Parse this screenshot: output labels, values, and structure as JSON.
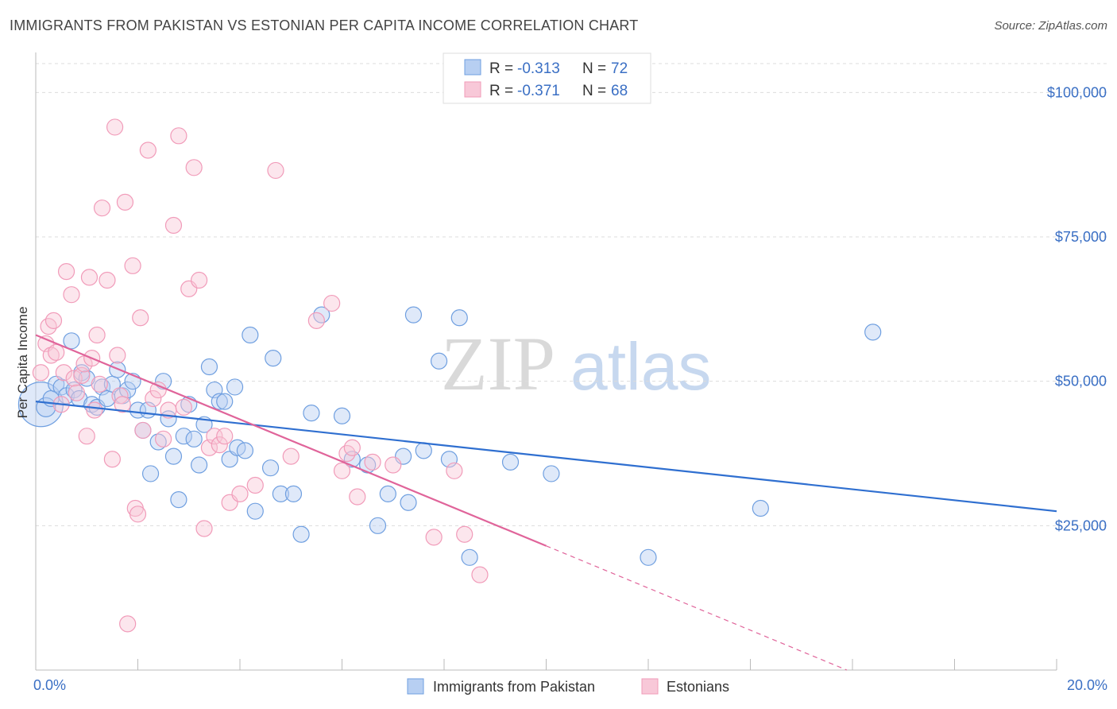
{
  "title": "IMMIGRANTS FROM PAKISTAN VS ESTONIAN PER CAPITA INCOME CORRELATION CHART",
  "source": "Source: ZipAtlas.com",
  "watermark": {
    "zip": "ZIP",
    "atlas": "atlas"
  },
  "chart_data": {
    "type": "scatter",
    "title": "IMMIGRANTS FROM PAKISTAN VS ESTONIAN PER CAPITA INCOME CORRELATION CHART",
    "xlabel": "",
    "ylabel": "Per Capita Income",
    "xlim": [
      0,
      20
    ],
    "ylim": [
      0,
      105000
    ],
    "x_tick_labels": [
      "0.0%",
      "20.0%"
    ],
    "y_ticks": [
      25000,
      50000,
      75000,
      100000
    ],
    "y_tick_labels": [
      "$25,000",
      "$50,000",
      "$75,000",
      "$100,000"
    ],
    "grid": true,
    "legend_position": "top-center",
    "legend_stats": [
      {
        "r_label": "R = ",
        "r_value": "-0.313",
        "n_label": "N = ",
        "n_value": "72"
      },
      {
        "r_label": "R = ",
        "r_value": "-0.371",
        "n_label": "N = ",
        "n_value": "68"
      }
    ],
    "series": [
      {
        "name": "Immigrants from Pakistan",
        "color": "#6f9fe0",
        "line_color": "#2f6fd0",
        "trend": {
          "x": [
            0,
            20
          ],
          "y": [
            46500,
            27500
          ],
          "solid_until": 20
        },
        "points": [
          [
            0.1,
            46000,
            28
          ],
          [
            0.2,
            45500,
            12
          ],
          [
            0.3,
            47000,
            10
          ],
          [
            0.4,
            49500,
            10
          ],
          [
            0.5,
            49000,
            10
          ],
          [
            0.6,
            47500,
            10
          ],
          [
            0.7,
            57000,
            10
          ],
          [
            0.75,
            48500,
            10
          ],
          [
            0.85,
            47000,
            10
          ],
          [
            0.9,
            51500,
            10
          ],
          [
            1.0,
            50500,
            10
          ],
          [
            1.1,
            46000,
            10
          ],
          [
            1.2,
            45500,
            10
          ],
          [
            1.3,
            49000,
            10
          ],
          [
            1.4,
            47000,
            10
          ],
          [
            1.5,
            49500,
            10
          ],
          [
            1.6,
            52000,
            10
          ],
          [
            1.7,
            47500,
            10
          ],
          [
            1.8,
            48500,
            10
          ],
          [
            1.9,
            50000,
            10
          ],
          [
            2.0,
            45000,
            10
          ],
          [
            2.1,
            41500,
            10
          ],
          [
            2.2,
            45000,
            10
          ],
          [
            2.25,
            34000,
            10
          ],
          [
            2.4,
            39500,
            10
          ],
          [
            2.5,
            50000,
            10
          ],
          [
            2.6,
            43500,
            10
          ],
          [
            2.7,
            37000,
            10
          ],
          [
            2.8,
            29500,
            10
          ],
          [
            2.9,
            40500,
            10
          ],
          [
            3.0,
            46000,
            10
          ],
          [
            3.1,
            40000,
            10
          ],
          [
            3.2,
            35500,
            10
          ],
          [
            3.3,
            42500,
            10
          ],
          [
            3.4,
            52500,
            10
          ],
          [
            3.5,
            48500,
            10
          ],
          [
            3.6,
            46500,
            10
          ],
          [
            3.7,
            46500,
            10
          ],
          [
            3.8,
            36500,
            10
          ],
          [
            3.9,
            49000,
            10
          ],
          [
            3.95,
            38500,
            10
          ],
          [
            4.1,
            38000,
            10
          ],
          [
            4.2,
            58000,
            10
          ],
          [
            4.3,
            27500,
            10
          ],
          [
            4.6,
            35000,
            10
          ],
          [
            4.65,
            54000,
            10
          ],
          [
            4.8,
            30500,
            10
          ],
          [
            5.05,
            30500,
            10
          ],
          [
            5.2,
            23500,
            10
          ],
          [
            5.4,
            44500,
            10
          ],
          [
            5.6,
            61500,
            10
          ],
          [
            6.0,
            44000,
            10
          ],
          [
            6.2,
            36500,
            10
          ],
          [
            6.5,
            35500,
            10
          ],
          [
            6.7,
            25000,
            10
          ],
          [
            6.9,
            30500,
            10
          ],
          [
            7.2,
            37000,
            10
          ],
          [
            7.3,
            29000,
            10
          ],
          [
            7.4,
            61500,
            10
          ],
          [
            7.6,
            38000,
            10
          ],
          [
            7.9,
            53500,
            10
          ],
          [
            8.1,
            36500,
            10
          ],
          [
            8.3,
            61000,
            10
          ],
          [
            8.5,
            19500,
            10
          ],
          [
            9.3,
            36000,
            10
          ],
          [
            10.1,
            34000,
            10
          ],
          [
            12.0,
            19500,
            10
          ],
          [
            14.2,
            28000,
            10
          ],
          [
            16.4,
            58500,
            10
          ]
        ]
      },
      {
        "name": "Estonians",
        "color": "#f19bb9",
        "line_color": "#e0649a",
        "trend": {
          "x": [
            0,
            20
          ],
          "y": [
            58000,
            -15000
          ],
          "solid_until": 10
        },
        "points": [
          [
            0.1,
            51500,
            10
          ],
          [
            0.2,
            56500,
            10
          ],
          [
            0.25,
            59500,
            10
          ],
          [
            0.3,
            54500,
            10
          ],
          [
            0.35,
            60500,
            10
          ],
          [
            0.4,
            55000,
            10
          ],
          [
            0.5,
            46000,
            10
          ],
          [
            0.55,
            51500,
            10
          ],
          [
            0.6,
            69000,
            10
          ],
          [
            0.7,
            65000,
            10
          ],
          [
            0.75,
            50500,
            10
          ],
          [
            0.8,
            48000,
            10
          ],
          [
            0.9,
            51000,
            10
          ],
          [
            0.95,
            53000,
            10
          ],
          [
            1.0,
            40500,
            10
          ],
          [
            1.05,
            68000,
            10
          ],
          [
            1.1,
            54000,
            10
          ],
          [
            1.15,
            45000,
            10
          ],
          [
            1.2,
            58000,
            10
          ],
          [
            1.25,
            49500,
            10
          ],
          [
            1.3,
            80000,
            10
          ],
          [
            1.4,
            67500,
            10
          ],
          [
            1.5,
            36500,
            10
          ],
          [
            1.55,
            94000,
            10
          ],
          [
            1.6,
            54500,
            10
          ],
          [
            1.65,
            47500,
            10
          ],
          [
            1.7,
            46000,
            10
          ],
          [
            1.75,
            81000,
            10
          ],
          [
            1.8,
            8000,
            10
          ],
          [
            1.9,
            70000,
            10
          ],
          [
            1.95,
            28000,
            10
          ],
          [
            2.0,
            27000,
            10
          ],
          [
            2.05,
            61000,
            10
          ],
          [
            2.1,
            41500,
            10
          ],
          [
            2.2,
            90000,
            10
          ],
          [
            2.3,
            47000,
            10
          ],
          [
            2.4,
            48500,
            10
          ],
          [
            2.5,
            40000,
            10
          ],
          [
            2.6,
            45000,
            10
          ],
          [
            2.7,
            77000,
            10
          ],
          [
            2.8,
            92500,
            10
          ],
          [
            2.9,
            45500,
            10
          ],
          [
            3.0,
            66000,
            10
          ],
          [
            3.1,
            87000,
            10
          ],
          [
            3.2,
            67500,
            10
          ],
          [
            3.3,
            24500,
            10
          ],
          [
            3.4,
            38500,
            10
          ],
          [
            3.5,
            40500,
            10
          ],
          [
            3.6,
            39000,
            10
          ],
          [
            3.7,
            40500,
            10
          ],
          [
            3.8,
            29000,
            10
          ],
          [
            4.0,
            30500,
            10
          ],
          [
            4.3,
            32000,
            10
          ],
          [
            4.7,
            86500,
            10
          ],
          [
            5.0,
            37000,
            10
          ],
          [
            5.5,
            60500,
            10
          ],
          [
            5.8,
            63500,
            10
          ],
          [
            6.0,
            34500,
            10
          ],
          [
            6.1,
            37500,
            10
          ],
          [
            6.2,
            38500,
            10
          ],
          [
            6.3,
            30000,
            10
          ],
          [
            6.6,
            36000,
            10
          ],
          [
            7.0,
            35500,
            10
          ],
          [
            7.8,
            23000,
            10
          ],
          [
            8.2,
            34500,
            10
          ],
          [
            8.4,
            23500,
            10
          ],
          [
            8.7,
            16500,
            10
          ]
        ]
      }
    ]
  },
  "bottom_legend": [
    {
      "label": "Immigrants from Pakistan"
    },
    {
      "label": "Estonians"
    }
  ]
}
